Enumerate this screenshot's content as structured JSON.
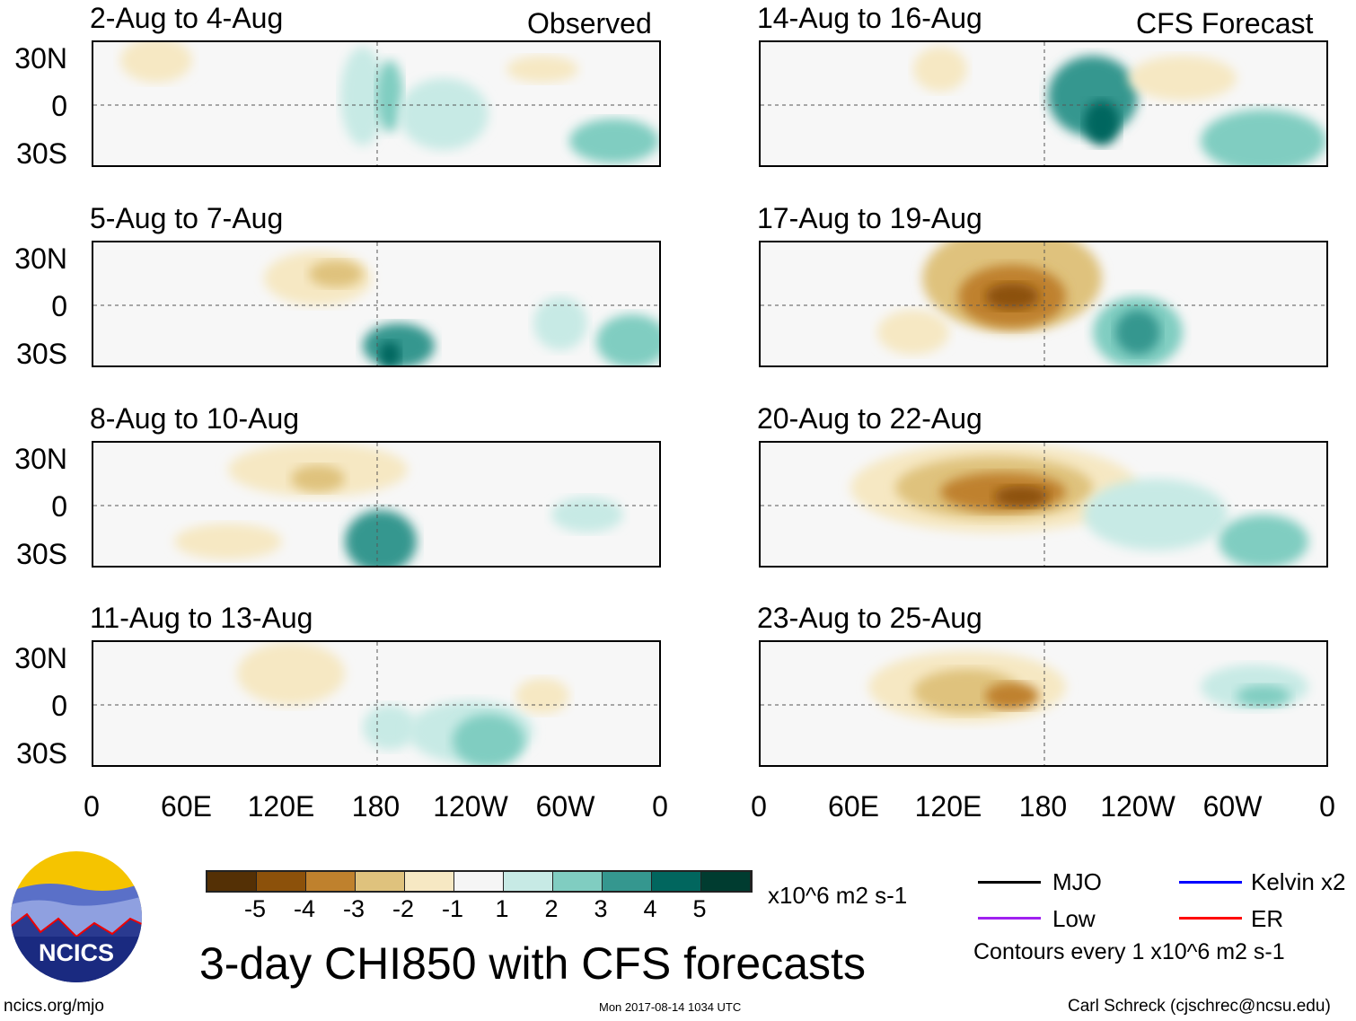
{
  "headers": {
    "left": "Observed",
    "right": "CFS Forecast"
  },
  "panels_left": [
    "2-Aug to 4-Aug",
    "5-Aug to 7-Aug",
    "8-Aug to 10-Aug",
    "11-Aug to 13-Aug"
  ],
  "panels_right": [
    "14-Aug to 16-Aug",
    "17-Aug to 19-Aug",
    "20-Aug to 22-Aug",
    "23-Aug to 25-Aug"
  ],
  "lat_labels": [
    "30N",
    "0",
    "30S"
  ],
  "lon_labels": [
    "0",
    "60E",
    "120E",
    "180",
    "120W",
    "60W",
    "0"
  ],
  "colorbar": {
    "colors": [
      "#543005",
      "#8c510a",
      "#bf812d",
      "#dfc27d",
      "#f6e8c3",
      "#f5f5f5",
      "#c7eae5",
      "#80cdc1",
      "#35978f",
      "#01665e",
      "#003c30"
    ],
    "labels": [
      "-5",
      "-4",
      "-3",
      "-2",
      "-1",
      "1",
      "2",
      "3",
      "4",
      "5"
    ],
    "units": "x10^6 m2 s-1"
  },
  "legend": {
    "items": [
      {
        "label": "MJO",
        "color": "#000000"
      },
      {
        "label": "Kelvin x2",
        "color": "#0000ff"
      },
      {
        "label": "Low",
        "color": "#a020f0"
      },
      {
        "label": "ER",
        "color": "#ff0000"
      }
    ],
    "note": "Contours every 1 x10^6 m2 s-1"
  },
  "title": "3-day CHI850 with CFS forecasts",
  "logo_text": "NCICS",
  "footer": {
    "url": "ncics.org/mjo",
    "timestamp": "Mon 2017-08-14 1034 UTC",
    "author": "Carl Schreck (cjschrec@ncsu.edu)"
  }
}
